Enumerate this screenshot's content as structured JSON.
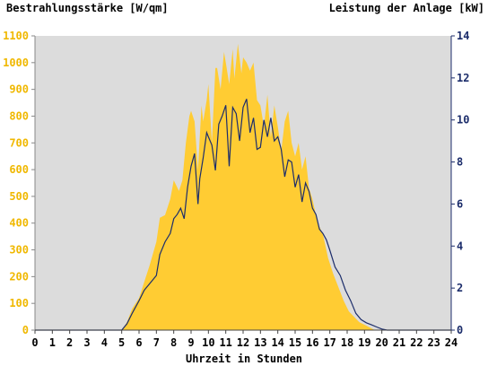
{
  "chart_data": {
    "type": "area",
    "title_left": "Bestrahlungsstärke [W/qm]",
    "title_right": "Leistung der Anlage [kW]",
    "xlabel": "Uhrzeit in Stunden",
    "xlim": [
      0,
      24
    ],
    "xticks": [
      "0",
      "1",
      "2",
      "3",
      "4",
      "5",
      "6",
      "7",
      "8",
      "9",
      "10",
      "11",
      "12",
      "13",
      "14",
      "15",
      "16",
      "17",
      "18",
      "19",
      "20",
      "21",
      "22",
      "23",
      "24"
    ],
    "y_left": {
      "lim": [
        0,
        1100
      ],
      "ticks": [
        "0",
        "100",
        "200",
        "300",
        "400",
        "500",
        "600",
        "700",
        "800",
        "900",
        "1000",
        "1100"
      ]
    },
    "y_right": {
      "lim": [
        0,
        14
      ],
      "ticks": [
        "0",
        "2",
        "4",
        "6",
        "8",
        "10",
        "12",
        "14"
      ]
    },
    "colors": {
      "irradiance": "#ffcc33",
      "power": "#1c2d6b",
      "plot_bg": "#dcdcdc",
      "left_axis_text": "#f0b800",
      "right_axis_text": "#1c2d6b"
    },
    "series": [
      {
        "name": "Bestrahlungsstärke",
        "axis": "left",
        "style": "area",
        "x": [
          0,
          5.0,
          5.3,
          5.6,
          6.0,
          6.3,
          6.6,
          7.0,
          7.2,
          7.5,
          7.8,
          8.0,
          8.3,
          8.5,
          8.7,
          8.9,
          9.0,
          9.2,
          9.4,
          9.6,
          9.7,
          9.9,
          10.0,
          10.2,
          10.4,
          10.5,
          10.7,
          10.9,
          11.0,
          11.2,
          11.4,
          11.5,
          11.7,
          11.9,
          12.0,
          12.2,
          12.4,
          12.6,
          12.8,
          13.0,
          13.2,
          13.4,
          13.6,
          13.8,
          14.0,
          14.2,
          14.4,
          14.6,
          14.8,
          15.0,
          15.2,
          15.4,
          15.6,
          15.8,
          16.0,
          16.3,
          16.6,
          16.9,
          17.2,
          17.5,
          17.8,
          18.1,
          18.4,
          18.7,
          19.0,
          19.3,
          19.6,
          20.0,
          20.5,
          21.0,
          24
        ],
        "values": [
          0,
          0,
          30,
          80,
          120,
          180,
          240,
          330,
          420,
          430,
          490,
          560,
          520,
          560,
          700,
          800,
          820,
          780,
          600,
          840,
          780,
          860,
          920,
          700,
          980,
          980,
          900,
          1040,
          1000,
          920,
          1050,
          940,
          1070,
          960,
          1020,
          1000,
          970,
          1000,
          860,
          840,
          760,
          880,
          720,
          840,
          760,
          670,
          780,
          820,
          700,
          650,
          700,
          600,
          650,
          530,
          490,
          400,
          360,
          270,
          210,
          160,
          110,
          70,
          50,
          30,
          20,
          10,
          0,
          0,
          0,
          0,
          0
        ]
      },
      {
        "name": "Leistung",
        "axis": "right",
        "style": "line",
        "x": [
          0,
          5.0,
          5.3,
          5.6,
          6.0,
          6.3,
          6.6,
          7.0,
          7.2,
          7.5,
          7.8,
          8.0,
          8.2,
          8.4,
          8.6,
          8.8,
          9.0,
          9.2,
          9.4,
          9.5,
          9.7,
          9.9,
          10.0,
          10.2,
          10.4,
          10.6,
          10.8,
          11.0,
          11.2,
          11.4,
          11.6,
          11.8,
          12.0,
          12.2,
          12.4,
          12.6,
          12.8,
          13.0,
          13.2,
          13.4,
          13.6,
          13.8,
          14.0,
          14.2,
          14.4,
          14.6,
          14.8,
          15.0,
          15.2,
          15.4,
          15.6,
          15.8,
          16.0,
          16.2,
          16.4,
          16.6,
          16.8,
          17.0,
          17.3,
          17.6,
          17.9,
          18.2,
          18.5,
          18.8,
          19.1,
          19.4,
          19.7,
          20.0,
          20.3,
          24
        ],
        "values": [
          0,
          0,
          0.3,
          0.8,
          1.4,
          1.9,
          2.2,
          2.6,
          3.6,
          4.2,
          4.6,
          5.3,
          5.5,
          5.8,
          5.3,
          6.8,
          7.8,
          8.4,
          6.0,
          7.2,
          8.2,
          9.4,
          9.2,
          8.8,
          7.6,
          9.8,
          10.2,
          10.7,
          7.8,
          10.6,
          10.3,
          9.0,
          10.6,
          11.0,
          9.4,
          10.1,
          8.6,
          8.7,
          10.0,
          9.2,
          10.1,
          9.0,
          9.2,
          8.6,
          7.3,
          8.1,
          8.0,
          6.8,
          7.4,
          6.1,
          7.0,
          6.6,
          5.8,
          5.5,
          4.8,
          4.6,
          4.3,
          3.8,
          3.0,
          2.6,
          1.9,
          1.4,
          0.8,
          0.5,
          0.35,
          0.25,
          0.15,
          0.05,
          0,
          0
        ]
      }
    ]
  }
}
